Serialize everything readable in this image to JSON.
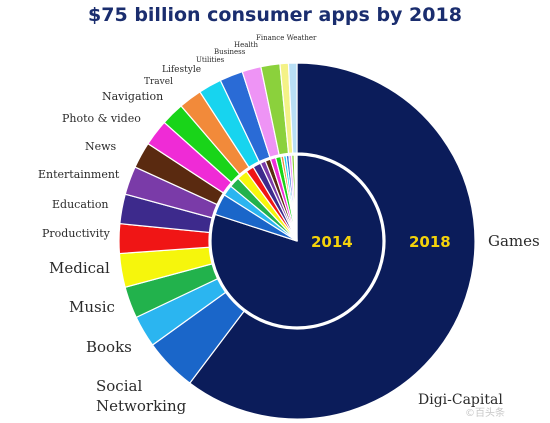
{
  "chart_data": {
    "type": "pie",
    "title": "$75 billion consumer apps by 2018",
    "categories": [
      "Games",
      "Social Networking",
      "Books",
      "Music",
      "Medical",
      "Productivity",
      "Education",
      "Entertainment",
      "News",
      "Photo & video",
      "Navigation",
      "Travel",
      "Lifestyle",
      "Utilities",
      "Business",
      "Health",
      "Finance",
      "Weather"
    ],
    "rings": [
      {
        "name": "2014",
        "ring": "inner",
        "values": [
          80,
          4,
          2,
          2,
          2,
          1.5,
          1.5,
          1,
          1,
          1,
          1,
          0.5,
          0.5,
          0.5,
          0.5,
          0.5,
          0.3,
          0.2
        ]
      },
      {
        "name": "2018",
        "ring": "outer",
        "values": [
          63,
          5,
          3,
          3,
          3.2,
          2.8,
          2.8,
          2.7,
          2.5,
          2.5,
          2.2,
          2.2,
          2.2,
          2.2,
          1.8,
          1.8,
          0.8,
          0.8
        ]
      }
    ],
    "colors": [
      "#0b1c5a",
      "#1a66c9",
      "#2bb5f0",
      "#22b24c",
      "#f6f60c",
      "#f01515",
      "#3d2a8c",
      "#7a3ba8",
      "#5a2a10",
      "#ef2bd6",
      "#19d419",
      "#f28a3a",
      "#17d4ef",
      "#2a6bd6",
      "#ee94f5",
      "#8bd13c",
      "#f4f287",
      "#b8dff5"
    ]
  },
  "labels": {
    "games": "Games",
    "social": "Social\nNetworking",
    "books": "Books",
    "music": "Music",
    "medical": "Medical",
    "productivity": "Productivity",
    "education": "Education",
    "entertainment": "Entertainment",
    "news": "News",
    "photo": "Photo & video",
    "navigation": "Navigation",
    "travel": "Travel",
    "lifestyle": "Lifestyle",
    "utilities": "Utilities",
    "business": "Business",
    "health": "Health",
    "finance_weather": "Finance Weather"
  },
  "year_inner": "2014",
  "year_outer": "2018",
  "credit": "Digi-Capital",
  "watermark": "©百头条"
}
